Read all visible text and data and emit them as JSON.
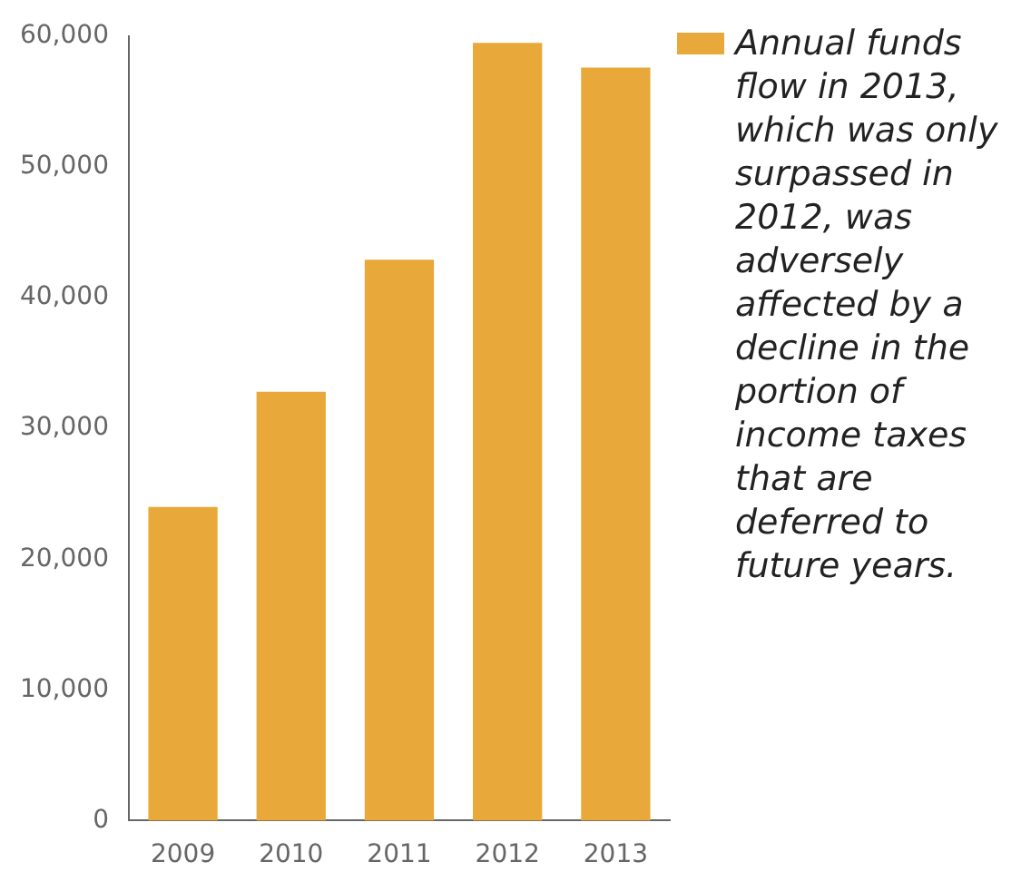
{
  "chart_data": {
    "type": "bar",
    "categories": [
      "2009",
      "2010",
      "2011",
      "2012",
      "2013"
    ],
    "series": [
      {
        "color": "#e8a93a",
        "values": [
          24000,
          32800,
          42900,
          59500,
          57600
        ]
      }
    ],
    "ylim": [
      0,
      60000
    ],
    "yticks": [
      {
        "value": 0,
        "label": "0"
      },
      {
        "value": 10000,
        "label": "10,000"
      },
      {
        "value": 20000,
        "label": "20,000"
      },
      {
        "value": 30000,
        "label": "30,000"
      },
      {
        "value": 40000,
        "label": "40,000"
      },
      {
        "value": 50000,
        "label": "50,000"
      },
      {
        "value": 60000,
        "label": "60,000"
      }
    ],
    "grid": false,
    "annotations": [
      "Annual funds flow in 2013, which was only surpassed in 2012, was adversely affected by a decline in the portion of income taxes that are deferred to future years."
    ]
  }
}
